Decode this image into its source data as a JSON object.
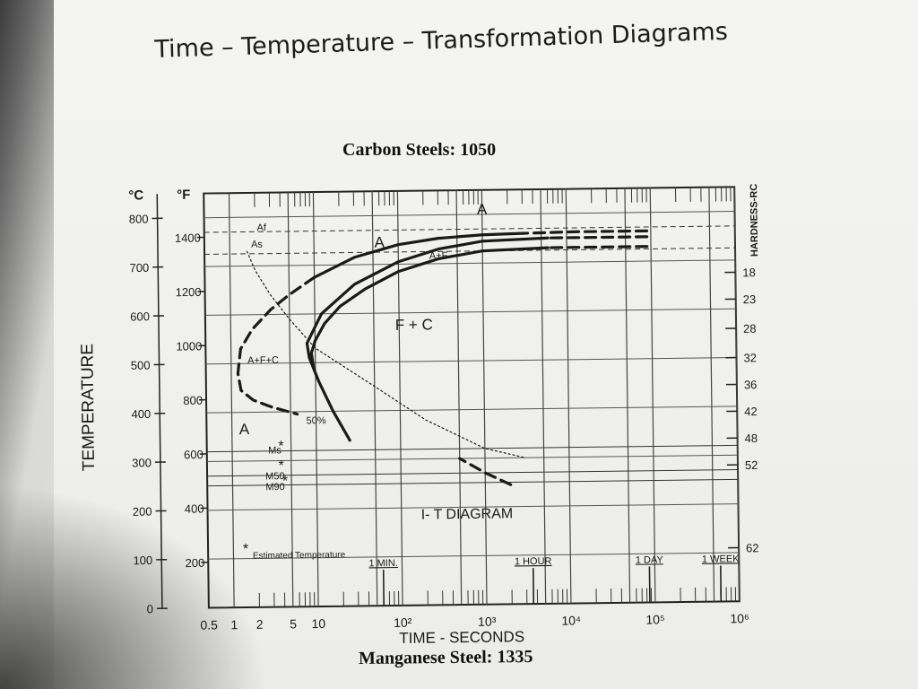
{
  "page": {
    "main_title": "Time – Temperature – Transformation Diagrams",
    "bottom_caption": "Manganese Steel: 1335"
  },
  "chart_data": {
    "type": "line",
    "title": "Carbon Steels: 1050",
    "subtitle": "I- T DIAGRAM",
    "xlabel": "TIME - SECONDS",
    "ylabel": "TEMPERATURE",
    "y2label": "HARDNESS-RC",
    "x_scale": "log",
    "xlim": [
      0.5,
      1000000
    ],
    "ylim": [
      0,
      850
    ],
    "grid": true,
    "x_ticks": [
      {
        "v": 0.5,
        "label": "0.5"
      },
      {
        "v": 1,
        "label": "1"
      },
      {
        "v": 2,
        "label": "2"
      },
      {
        "v": 5,
        "label": "5"
      },
      {
        "v": 10,
        "label": "10"
      },
      {
        "v": 100,
        "label": "10²"
      },
      {
        "v": 1000,
        "label": "10³"
      },
      {
        "v": 10000,
        "label": "10⁴"
      },
      {
        "v": 100000,
        "label": "10⁵"
      },
      {
        "v": 1000000,
        "label": "10⁶"
      }
    ],
    "time_markers": [
      {
        "v": 60,
        "label": "1 MIN."
      },
      {
        "v": 3600,
        "label": "1 HOUR"
      },
      {
        "v": 86400,
        "label": "1 DAY"
      },
      {
        "v": 604800,
        "label": "1 WEEK"
      }
    ],
    "celsius_ticks": [
      {
        "v": 0,
        "label": "0"
      },
      {
        "v": 100,
        "label": "100"
      },
      {
        "v": 200,
        "label": "200"
      },
      {
        "v": 300,
        "label": "300"
      },
      {
        "v": 400,
        "label": "400"
      },
      {
        "v": 500,
        "label": "500"
      },
      {
        "v": 600,
        "label": "600"
      },
      {
        "v": 700,
        "label": "700"
      },
      {
        "v": 800,
        "label": "800"
      }
    ],
    "fahrenheit_ticks": [
      {
        "v": 200,
        "label": "200"
      },
      {
        "v": 400,
        "label": "400"
      },
      {
        "v": 600,
        "label": "600"
      },
      {
        "v": 800,
        "label": "800"
      },
      {
        "v": 1000,
        "label": "1000"
      },
      {
        "v": 1200,
        "label": "1200"
      },
      {
        "v": 1400,
        "label": "1400"
      }
    ],
    "celsius_unit": "°C",
    "fahrenheit_unit": "°F",
    "hardness_ticks": [
      {
        "t": 675,
        "label": "18"
      },
      {
        "t": 620,
        "label": "23"
      },
      {
        "t": 560,
        "label": "28"
      },
      {
        "t": 500,
        "label": "32"
      },
      {
        "t": 445,
        "label": "36"
      },
      {
        "t": 390,
        "label": "42"
      },
      {
        "t": 335,
        "label": "48"
      },
      {
        "t": 280,
        "label": "52"
      },
      {
        "t": 110,
        "label": "62"
      }
    ],
    "series": [
      {
        "name": "50%",
        "style": "dotted",
        "x": [
          1.6,
          2,
          3,
          5,
          10,
          50,
          200,
          1000,
          3000
        ],
        "y": [
          730,
          690,
          640,
          590,
          530,
          450,
          380,
          320,
          300
        ]
      },
      {
        "x": [
          6000,
          1000,
          300,
          100,
          30,
          12,
          8,
          8.5,
          11,
          16,
          25
        ],
        "y": [
          750,
          745,
          730,
          705,
          660,
          600,
          540,
          510,
          460,
          400,
          340
        ]
      },
      {
        "x": [
          6000,
          1000,
          300,
          100,
          40,
          20,
          13,
          10,
          9,
          9.5
        ],
        "y": [
          730,
          725,
          710,
          685,
          650,
          615,
          580,
          545,
          520,
          490
        ]
      },
      {
        "x": [
          3000,
          1000,
          300,
          100,
          30,
          10
        ],
        "y": [
          760,
          758,
          752,
          740,
          715,
          675
        ]
      },
      {
        "style": "dashed",
        "x": [
          90000,
          12000,
          6000
        ],
        "y": [
          750,
          750,
          750
        ]
      },
      {
        "style": "dashed",
        "x": [
          90000,
          12000,
          6000
        ],
        "y": [
          730,
          730,
          730
        ]
      },
      {
        "style": "dashed",
        "x": [
          90000,
          12000,
          3000
        ],
        "y": [
          762,
          762,
          760
        ]
      },
      {
        "style": "dashed",
        "x": [
          10,
          5,
          3,
          1.8,
          1.3,
          1.2,
          1.3,
          1.8,
          3,
          6
        ],
        "y": [
          675,
          640,
          610,
          570,
          530,
          480,
          445,
          425,
          410,
          395
        ]
      },
      {
        "style": "dashed",
        "x": [
          2000,
          1000,
          500
        ],
        "y": [
          245,
          270,
          300
        ]
      }
    ],
    "temperature_lines": [
      {
        "name": "Af",
        "temp_c": 770
      },
      {
        "name": "As",
        "temp_c": 725
      },
      {
        "name": "Ms",
        "temp_c": 320
      },
      {
        "name": "M50",
        "temp_c": 270
      },
      {
        "name": "M90",
        "temp_c": 250
      }
    ],
    "annotations": [
      {
        "text": "A",
        "x": 60,
        "y": 735
      },
      {
        "text": "A",
        "x": 1000,
        "y": 800
      },
      {
        "text": "A+F",
        "x": 300,
        "y": 710
      },
      {
        "text": "F + C",
        "x": 150,
        "y": 565
      },
      {
        "text": "A+F+C",
        "x": 2.4,
        "y": 500
      },
      {
        "text": "A",
        "x": 1.4,
        "y": 355
      },
      {
        "text": "50%",
        "x": 10,
        "y": 375
      },
      {
        "text": "Af",
        "x": 2.4,
        "y": 772
      },
      {
        "text": "As",
        "x": 2.1,
        "y": 738
      },
      {
        "text": "Ms",
        "x": 3.2,
        "y": 315
      },
      {
        "text": "M50",
        "x": 3.2,
        "y": 262
      },
      {
        "text": "M90",
        "x": 3.2,
        "y": 240
      },
      {
        "text": "Estimated Temperature",
        "x": 6,
        "y": 100
      }
    ],
    "estimated_markers": [
      {
        "x": 3.8,
        "y": 330
      },
      {
        "x": 3.8,
        "y": 290
      },
      {
        "x": 4.2,
        "y": 258
      },
      {
        "x": 1.4,
        "y": 120
      }
    ]
  }
}
